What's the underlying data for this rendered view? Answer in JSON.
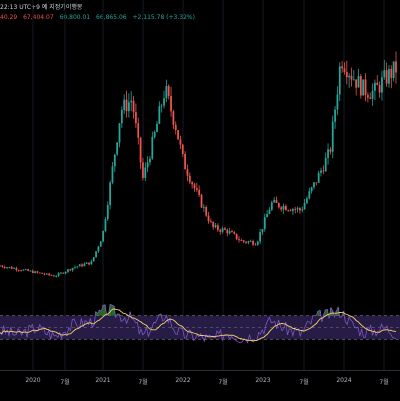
{
  "header": {
    "title_line": "22:13 UTC+9 예 지정가이행몽",
    "values": [
      {
        "text": "40.29",
        "color": "#ef5350"
      },
      {
        "text": "67,404.07",
        "color": "#ef5350"
      },
      {
        "text": "60,800.01",
        "color": "#26a69a"
      },
      {
        "text": "66,865.06",
        "color": "#26a69a"
      },
      {
        "text": "+2,115.78 (+3.32%)",
        "color": "#26a69a"
      }
    ]
  },
  "xaxis": {
    "labels": [
      "2020",
      "7월",
      "2021",
      "7월",
      "2022",
      "7월",
      "2023",
      "7월",
      "2024",
      "7월"
    ]
  },
  "colors": {
    "up": "#26a69a",
    "down": "#ef5350",
    "rsi_line": "#7e57c2",
    "rsi_ma": "#f5d26b",
    "rsi_band": "#2a1f4d",
    "overbought_fill": "#2e7d32"
  },
  "chart_data": [
    {
      "type": "candlestick",
      "series": [
        {
          "name": "",
          "x": [
            2019.5,
            2019.75,
            2020.0,
            2020.25,
            2020.5,
            2020.75,
            2020.9,
            2021.0,
            2021.15,
            2021.3,
            2021.45,
            2021.6,
            2021.75,
            2021.9,
            2022.0,
            2022.2,
            2022.4,
            2022.6,
            2022.8,
            2023.0,
            2023.2,
            2023.4,
            2023.6,
            2023.8,
            2024.0,
            2024.15,
            2024.3,
            2024.45,
            2024.6,
            2024.75,
            2024.9
          ],
          "close": [
            10000,
            9000,
            8000,
            7000,
            9500,
            11000,
            19000,
            33000,
            55000,
            58000,
            35000,
            47000,
            61000,
            50000,
            40000,
            30000,
            21000,
            20000,
            17000,
            16800,
            28000,
            27000,
            26000,
            34000,
            43000,
            70000,
            65000,
            61000,
            60000,
            64000,
            66865.06
          ]
        }
      ]
    },
    {
      "type": "line",
      "title": "",
      "series": [
        {
          "name": "",
          "x": [
            2019.5,
            2019.75,
            2020.0,
            2020.25,
            2020.5,
            2020.75,
            2020.9,
            2021.0,
            2021.15,
            2021.3,
            2021.45,
            2021.6,
            2021.75,
            2021.9,
            2022.0,
            2022.2,
            2022.4,
            2022.6,
            2022.8,
            2023.0,
            2023.2,
            2023.4,
            2023.6,
            2023.8,
            2024.0,
            2024.15,
            2024.3,
            2024.45,
            2024.6,
            2024.75,
            2024.9
          ],
          "values": [
            45,
            38,
            50,
            35,
            55,
            60,
            78,
            80,
            70,
            65,
            35,
            55,
            72,
            45,
            38,
            35,
            30,
            42,
            32,
            38,
            62,
            48,
            40,
            68,
            72,
            78,
            55,
            42,
            45,
            50,
            40
          ]
        }
      ],
      "ylim": [
        0,
        100
      ]
    }
  ]
}
